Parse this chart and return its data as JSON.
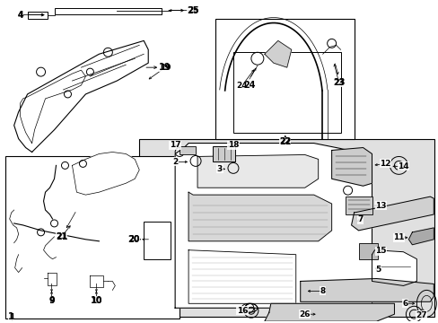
{
  "bg": "#ffffff",
  "panel_bg": "#e8e8e8",
  "fw": 4.89,
  "fh": 3.6,
  "dpi": 100
}
